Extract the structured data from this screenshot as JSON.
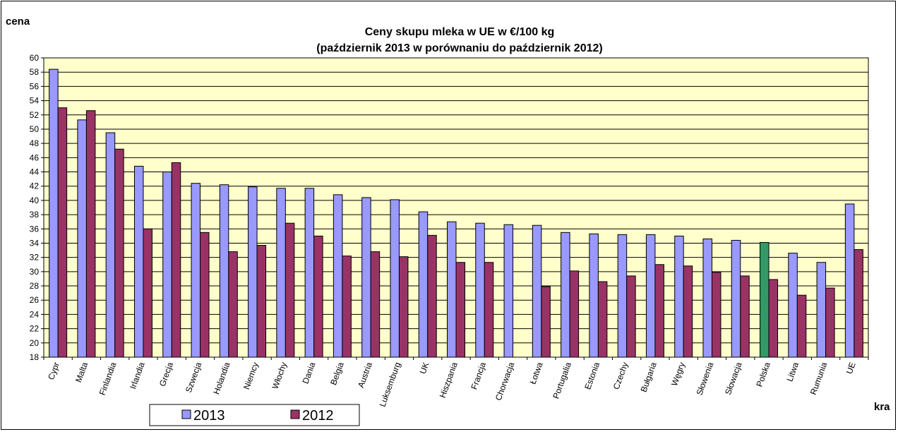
{
  "chart_data": {
    "type": "bar",
    "title": "Ceny skupu mleka w UE w €/100 kg",
    "subtitle": "(październik 2013 w porównaniu do październik 2012)",
    "ylabel": "cena",
    "xlabel": "kra",
    "ylim": [
      18,
      60
    ],
    "ytick_step": 2,
    "grid": true,
    "legend_position": "bottom-left",
    "categories": [
      "Cypr",
      "Malta",
      "Finlandia",
      "Irlandia",
      "Grecja",
      "Szwecja",
      "Holandia",
      "Niemcy",
      "Włochy",
      "Dania",
      "Belgia",
      "Austria",
      "Luksemburg",
      "UK",
      "Hiszpania",
      "Francja",
      "Chorwacja",
      "Łotwa",
      "Portugalia",
      "Estonia",
      "Czechy",
      "Bułgaria",
      "Węgry",
      "Słowenia",
      "Słowacja",
      "Polska",
      "Litwa",
      "Rumunia",
      "UE"
    ],
    "series": [
      {
        "name": "2013",
        "color": "#9999FF",
        "values": [
          58.4,
          51.3,
          49.5,
          44.8,
          44.0,
          42.4,
          42.2,
          41.9,
          41.7,
          41.7,
          40.8,
          40.4,
          40.1,
          38.4,
          37.0,
          36.8,
          36.6,
          36.5,
          35.5,
          35.3,
          35.2,
          35.2,
          35.0,
          34.6,
          34.4,
          34.1,
          32.6,
          31.3,
          39.5
        ]
      },
      {
        "name": "2012",
        "color": "#993366",
        "values": [
          53.0,
          52.6,
          47.2,
          36.0,
          45.3,
          35.5,
          32.8,
          33.7,
          36.8,
          35.0,
          32.2,
          32.8,
          32.1,
          35.1,
          31.3,
          31.3,
          null,
          27.9,
          30.1,
          28.6,
          29.4,
          31.0,
          30.8,
          29.9,
          29.4,
          28.9,
          26.7,
          27.7,
          33.1
        ]
      }
    ],
    "highlight": {
      "category": "Polska",
      "series": "2013",
      "color": "#339966"
    },
    "plot_background": "#FFFFCC"
  }
}
